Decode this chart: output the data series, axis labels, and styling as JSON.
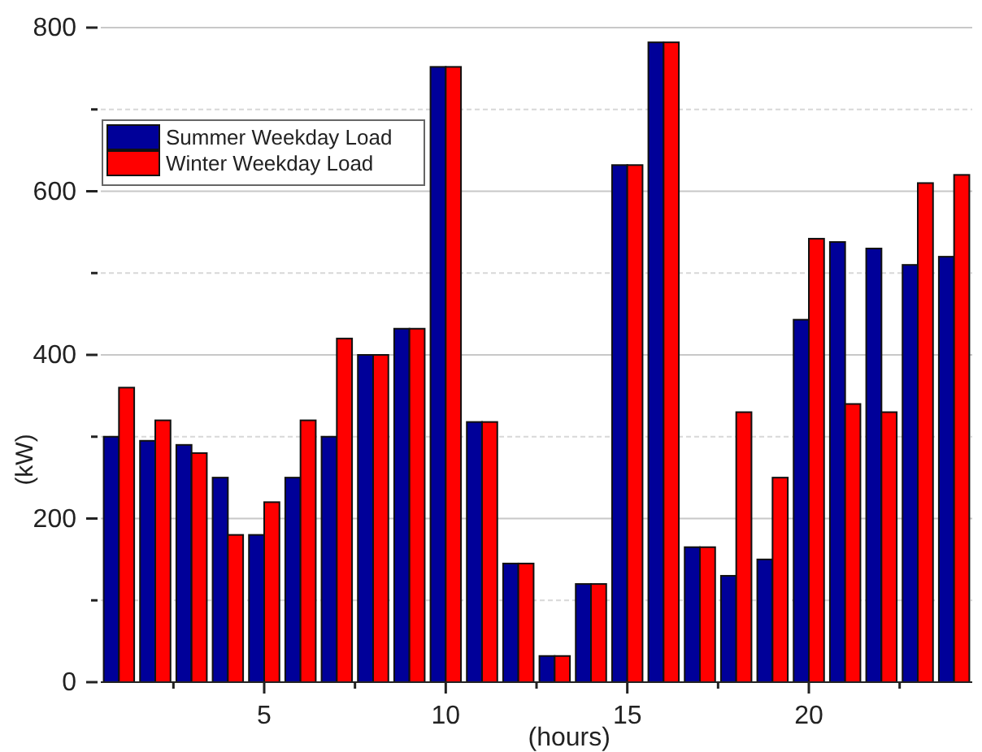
{
  "chart_data": {
    "type": "bar",
    "xlabel": "(hours)",
    "ylabel": "(kW)",
    "x": [
      1,
      2,
      3,
      4,
      5,
      6,
      7,
      8,
      9,
      10,
      11,
      12,
      13,
      14,
      15,
      16,
      17,
      18,
      19,
      20,
      21,
      22,
      23,
      24
    ],
    "xlim": [
      0.5,
      24.5
    ],
    "xticks": [
      {
        "value": 2.5,
        "label": null
      },
      5,
      {
        "value": 7.5,
        "label": null
      },
      10,
      {
        "value": 12.5,
        "label": null
      },
      15,
      {
        "value": 17.5,
        "label": null
      },
      20,
      {
        "value": 22.5,
        "label": null
      }
    ],
    "ylim": [
      0,
      800
    ],
    "yticks": [
      0,
      {
        "value": 100,
        "label": null
      },
      200,
      {
        "value": 300,
        "label": null
      },
      400,
      {
        "value": 500,
        "label": null
      },
      600,
      {
        "value": 700,
        "label": null
      },
      800
    ],
    "grid": "y",
    "legend": "top left",
    "series": [
      {
        "name": "Summer Weekday Load",
        "color": "#000099",
        "values": [
          300,
          295,
          290,
          250,
          180,
          250,
          300,
          400,
          432,
          752,
          318,
          145,
          32,
          120,
          632,
          782,
          165,
          130,
          150,
          443,
          538,
          530,
          510,
          520
        ]
      },
      {
        "name": "Winter Weekday Load",
        "color": "#ff0000",
        "values": [
          360,
          320,
          280,
          180,
          220,
          320,
          420,
          400,
          432,
          752,
          318,
          145,
          32,
          120,
          632,
          782,
          165,
          330,
          250,
          542,
          340,
          330,
          610,
          620
        ]
      }
    ]
  }
}
